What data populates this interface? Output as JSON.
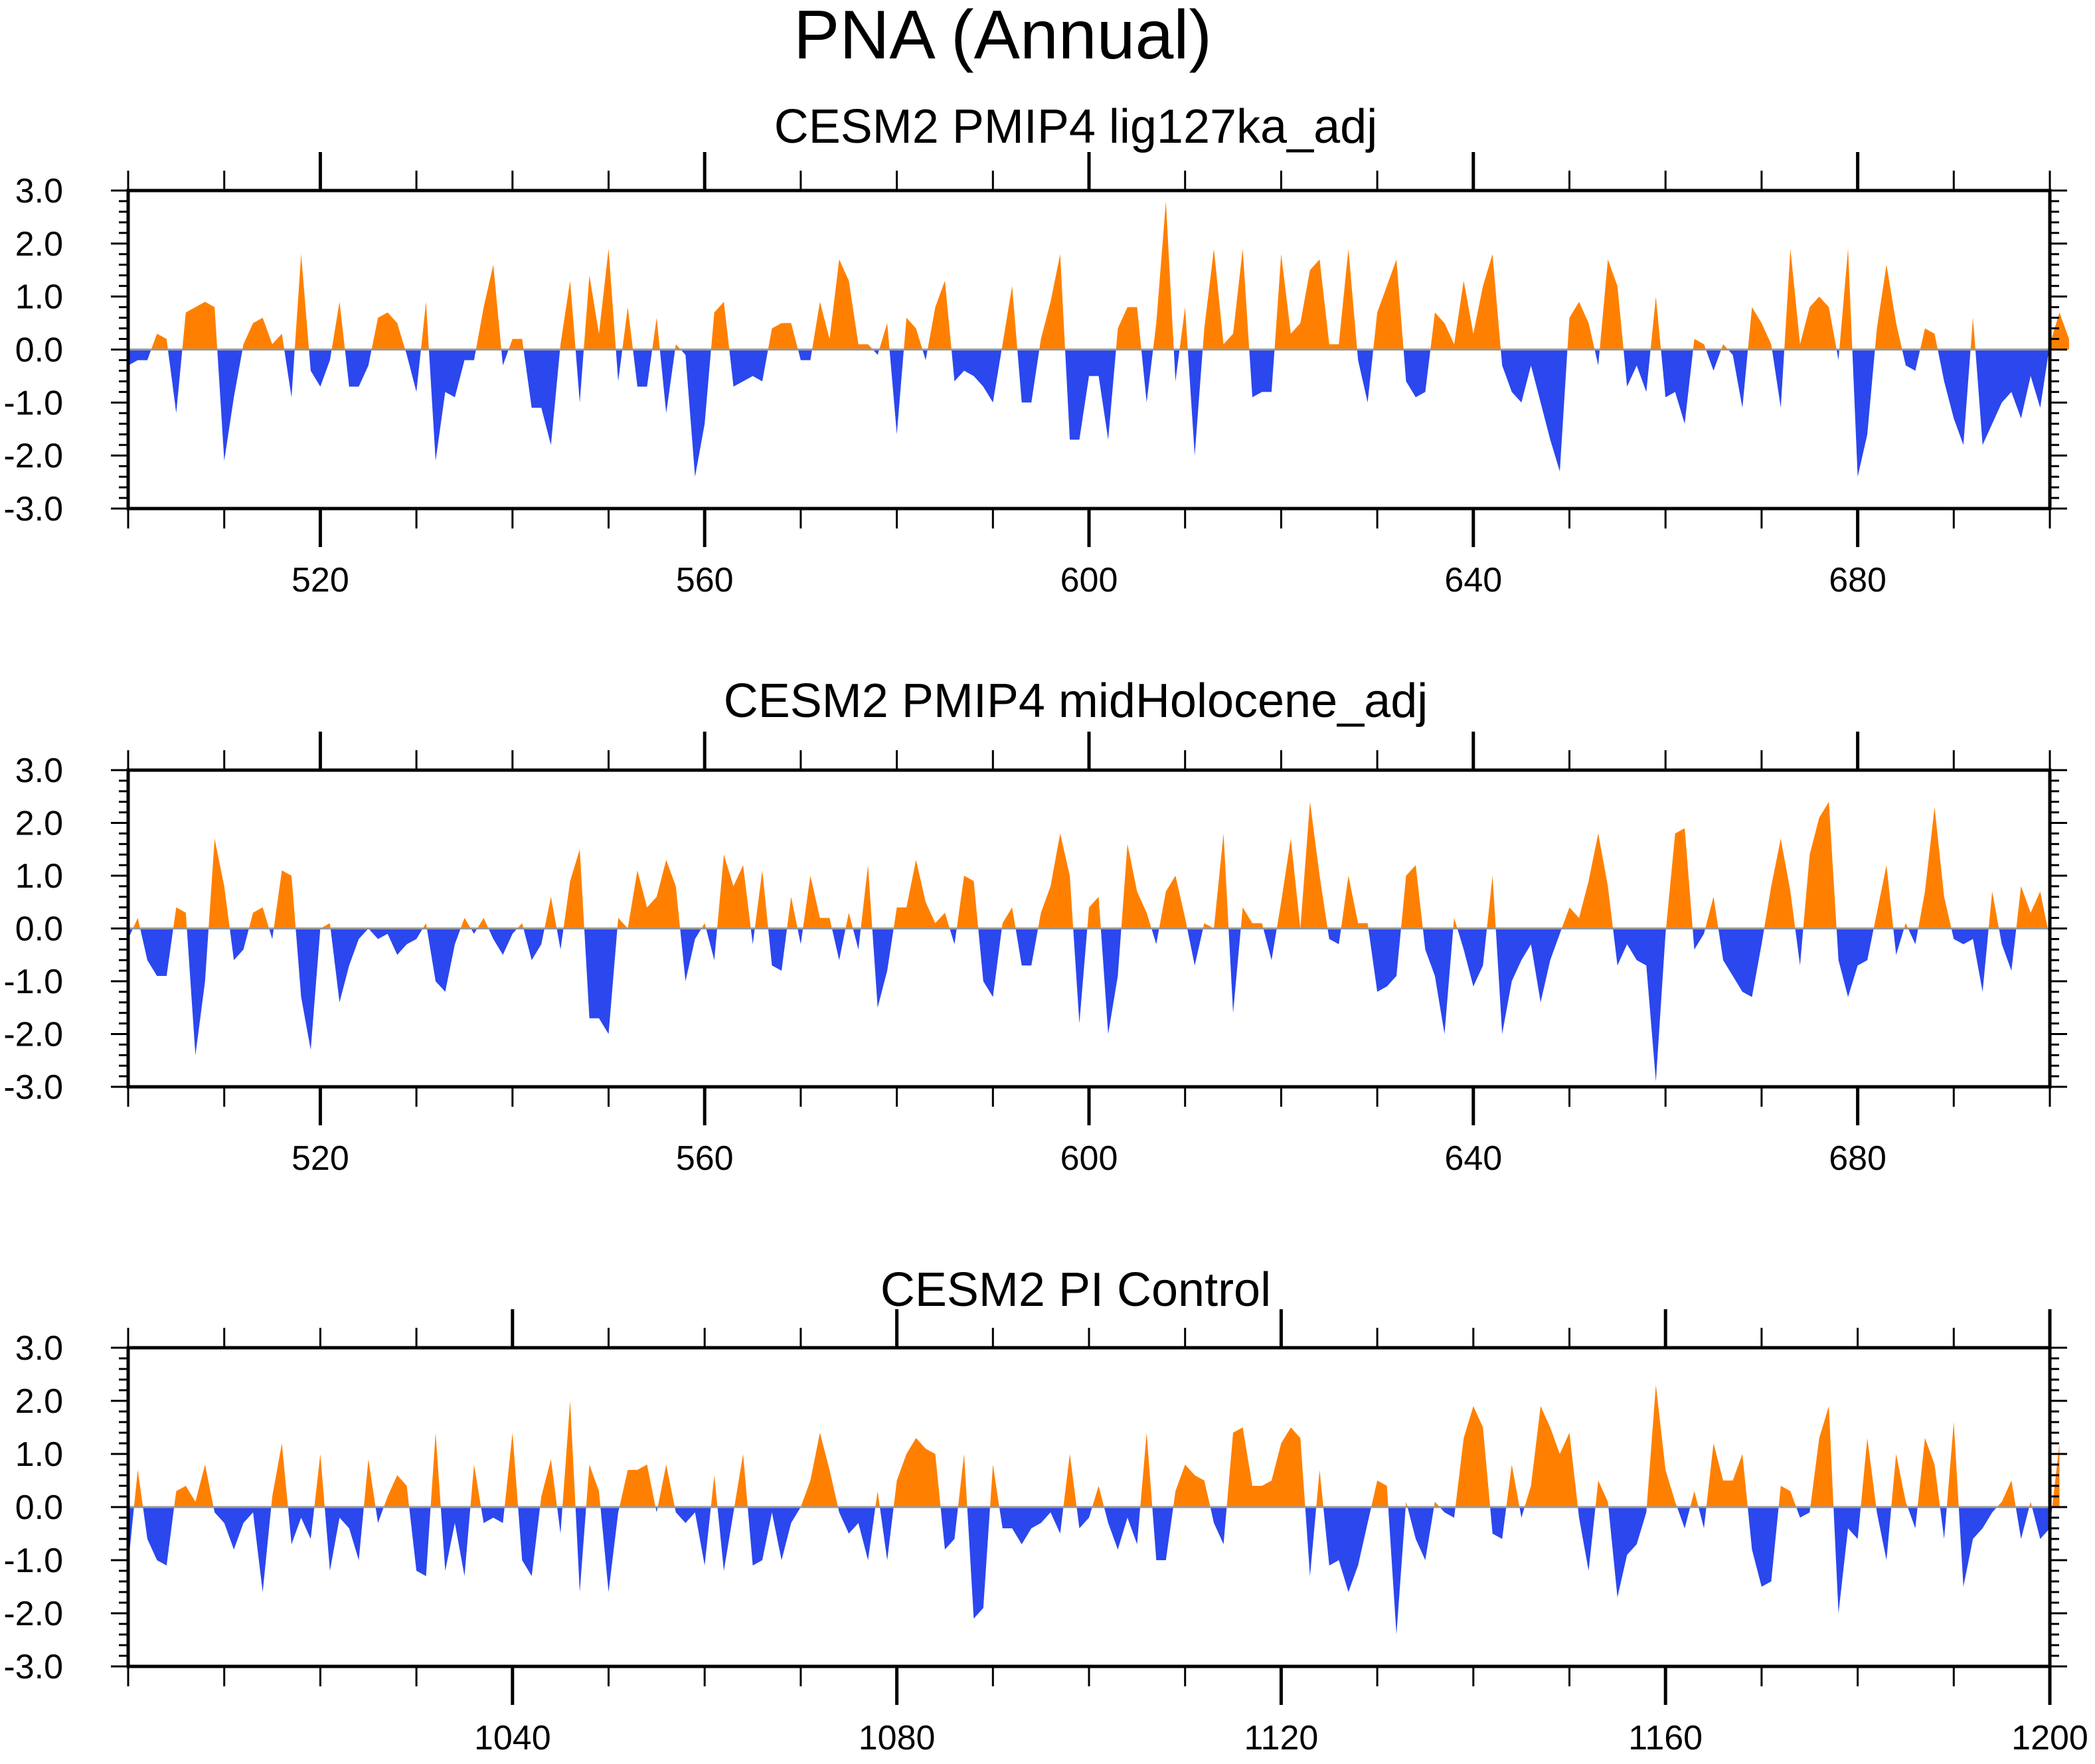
{
  "title": "PNA (Annual)",
  "colors": {
    "positive": "#ff8000",
    "negative": "#2b47ee",
    "zero_line": "#999999",
    "axis": "#000000"
  },
  "chart_data": [
    {
      "type": "area",
      "title": "CESM2 PMIP4 lig127ka_adj",
      "xlim": [
        500,
        700
      ],
      "ylim": [
        -3,
        3
      ],
      "x_ticks": [
        520,
        560,
        600,
        640,
        680
      ],
      "x_tick_labels": [
        "520",
        "560",
        "600",
        "640",
        "680"
      ],
      "y_ticks": [
        3,
        2,
        1,
        0,
        -1,
        -2,
        -3
      ],
      "y_tick_labels": [
        "3.0",
        "2.0",
        "1.0",
        "0.0",
        "-1.0",
        "-2.0",
        "-3.0"
      ],
      "x_start": 500,
      "values": [
        -0.3,
        -0.2,
        -0.2,
        0.3,
        0.2,
        -1.2,
        0.7,
        0.8,
        0.9,
        0.8,
        -2.1,
        -0.9,
        0.1,
        0.5,
        0.6,
        0.1,
        0.3,
        -0.9,
        1.8,
        -0.4,
        -0.7,
        -0.2,
        0.9,
        -0.7,
        -0.7,
        -0.3,
        0.6,
        0.7,
        0.5,
        -0.1,
        -0.8,
        0.9,
        -2.1,
        -0.8,
        -0.9,
        -0.2,
        -0.2,
        0.8,
        1.6,
        -0.3,
        0.2,
        0.2,
        -1.1,
        -1.1,
        -1.8,
        0.1,
        1.3,
        -1.0,
        1.4,
        0.3,
        1.9,
        -0.6,
        0.8,
        -0.7,
        -0.7,
        0.6,
        -1.2,
        0.1,
        -0.1,
        -2.4,
        -1.4,
        0.7,
        0.9,
        -0.7,
        -0.6,
        -0.5,
        -0.6,
        0.4,
        0.5,
        0.5,
        -0.2,
        -0.2,
        0.9,
        0.2,
        1.7,
        1.3,
        0.1,
        0.1,
        -0.1,
        0.5,
        -1.6,
        0.6,
        0.4,
        -0.2,
        0.8,
        1.3,
        -0.6,
        -0.4,
        -0.5,
        -0.7,
        -1.0,
        0.1,
        1.2,
        -1.0,
        -1.0,
        0.2,
        0.9,
        1.8,
        -1.7,
        -1.7,
        -0.5,
        -0.5,
        -1.7,
        0.4,
        0.8,
        0.8,
        -1.0,
        0.5,
        2.8,
        -0.6,
        0.8,
        -2.0,
        0.4,
        1.9,
        0.1,
        0.3,
        1.9,
        -0.9,
        -0.8,
        -0.8,
        1.8,
        0.3,
        0.5,
        1.5,
        1.7,
        0.1,
        0.1,
        1.9,
        -0.2,
        -1.0,
        0.7,
        1.2,
        1.7,
        -0.6,
        -0.9,
        -0.8,
        0.7,
        0.5,
        0.1,
        1.3,
        0.3,
        1.2,
        1.8,
        -0.3,
        -0.8,
        -1.0,
        -0.3,
        -1.0,
        -1.7,
        -2.3,
        0.6,
        0.9,
        0.5,
        -0.3,
        1.7,
        1.2,
        -0.7,
        -0.3,
        -0.8,
        1.0,
        -0.9,
        -0.8,
        -1.4,
        0.2,
        0.1,
        -0.4,
        0.1,
        -0.1,
        -1.1,
        0.8,
        0.5,
        0.1,
        -1.1,
        1.9,
        0.1,
        0.8,
        1.0,
        0.8,
        -0.2,
        1.9,
        -2.4,
        -1.6,
        0.4,
        1.6,
        0.5,
        -0.3,
        -0.4,
        0.4,
        0.3,
        -0.6,
        -1.3,
        -1.8,
        0.6,
        -1.8,
        -1.4,
        -1.0,
        -0.8,
        -1.3,
        -0.5,
        -1.1,
        0.1,
        0.7,
        0.2
      ]
    },
    {
      "type": "area",
      "title": "CESM2 PMIP4 midHolocene_adj",
      "xlim": [
        500,
        700
      ],
      "ylim": [
        -3,
        3
      ],
      "x_ticks": [
        520,
        560,
        600,
        640,
        680
      ],
      "x_tick_labels": [
        "520",
        "560",
        "600",
        "640",
        "680"
      ],
      "y_ticks": [
        3,
        2,
        1,
        0,
        -1,
        -2,
        -3
      ],
      "y_tick_labels": [
        "3.0",
        "2.0",
        "1.0",
        "0.0",
        "-1.0",
        "-2.0",
        "-3.0"
      ],
      "x_start": 500,
      "values": [
        -0.2,
        0.2,
        -0.6,
        -0.9,
        -0.9,
        0.4,
        0.3,
        -2.4,
        -1.0,
        1.7,
        0.8,
        -0.6,
        -0.4,
        0.3,
        0.4,
        -0.2,
        1.1,
        1.0,
        -1.3,
        -2.3,
        0.0,
        0.1,
        -1.4,
        -0.7,
        -0.2,
        0.0,
        -0.2,
        -0.1,
        -0.5,
        -0.3,
        -0.2,
        0.1,
        -1.0,
        -1.2,
        -0.3,
        0.2,
        -0.1,
        0.2,
        -0.2,
        -0.5,
        -0.1,
        0.1,
        -0.6,
        -0.3,
        0.6,
        -0.4,
        0.9,
        1.5,
        -1.7,
        -1.7,
        -2.0,
        0.2,
        0.0,
        1.1,
        0.4,
        0.6,
        1.3,
        0.8,
        -1.0,
        -0.2,
        0.1,
        -0.6,
        1.4,
        0.8,
        1.2,
        -0.3,
        1.1,
        -0.7,
        -0.8,
        0.6,
        -0.3,
        1.0,
        0.2,
        0.2,
        -0.6,
        0.3,
        -0.4,
        1.2,
        -1.5,
        -0.8,
        0.4,
        0.4,
        1.3,
        0.5,
        0.1,
        0.3,
        -0.3,
        1.0,
        0.9,
        -1.0,
        -1.3,
        0.1,
        0.4,
        -0.7,
        -0.7,
        0.3,
        0.8,
        1.8,
        1.0,
        -1.8,
        0.4,
        0.6,
        -2.0,
        -0.9,
        1.6,
        0.7,
        0.3,
        -0.3,
        0.7,
        1.0,
        0.2,
        -0.7,
        0.1,
        0.0,
        1.8,
        -1.6,
        0.4,
        0.1,
        0.1,
        -0.6,
        0.5,
        1.7,
        0.0,
        2.4,
        1.0,
        -0.2,
        -0.3,
        1.0,
        0.1,
        0.1,
        -1.2,
        -1.1,
        -0.9,
        1.0,
        1.2,
        -0.4,
        -0.9,
        -2.0,
        0.2,
        -0.4,
        -1.1,
        -0.7,
        1.0,
        -2.0,
        -1.0,
        -0.6,
        -0.3,
        -1.4,
        -0.6,
        -0.1,
        0.4,
        0.2,
        0.9,
        1.8,
        0.8,
        -0.7,
        -0.3,
        -0.6,
        -0.7,
        -2.9,
        -0.1,
        1.8,
        1.9,
        -0.4,
        -0.1,
        0.6,
        -0.6,
        -0.9,
        -1.2,
        -1.3,
        -0.3,
        0.8,
        1.7,
        0.7,
        -0.7,
        1.4,
        2.1,
        2.4,
        -0.6,
        -1.3,
        -0.7,
        -0.6,
        0.3,
        1.2,
        -0.5,
        0.1,
        -0.3,
        0.7,
        2.3,
        0.6,
        -0.2,
        -0.3,
        -0.2,
        -1.2,
        0.7,
        -0.3,
        -0.8,
        0.8,
        0.3,
        0.7,
        -0.2
      ]
    },
    {
      "type": "area",
      "title": "CESM2 PI Control",
      "xlim": [
        1000,
        1200
      ],
      "ylim": [
        -3,
        3
      ],
      "x_ticks": [
        1040,
        1080,
        1120,
        1160,
        1200
      ],
      "x_tick_labels": [
        "1040",
        "1080",
        "1120",
        "1160",
        "1200"
      ],
      "y_ticks": [
        3,
        2,
        1,
        0,
        -1,
        -2,
        -3
      ],
      "y_tick_labels": [
        "3.0",
        "2.0",
        "1.0",
        "0.0",
        "-1.0",
        "-2.0",
        "-3.0"
      ],
      "x_start": 1000,
      "values": [
        -1.1,
        0.7,
        -0.6,
        -1.0,
        -1.1,
        0.3,
        0.4,
        0.1,
        0.8,
        -0.1,
        -0.3,
        -0.8,
        -0.3,
        -0.1,
        -1.6,
        0.2,
        1.2,
        -0.7,
        -0.2,
        -0.6,
        1.0,
        -1.2,
        -0.2,
        -0.4,
        -1.0,
        0.9,
        -0.3,
        0.2,
        0.6,
        0.4,
        -1.2,
        -1.3,
        1.4,
        -1.2,
        -0.3,
        -1.3,
        0.8,
        -0.3,
        -0.2,
        -0.3,
        1.4,
        -1.0,
        -1.3,
        0.2,
        0.9,
        -0.5,
        2.0,
        -1.6,
        0.8,
        0.3,
        -1.6,
        -0.1,
        0.7,
        0.7,
        0.8,
        -0.1,
        0.8,
        -0.1,
        -0.3,
        -0.1,
        -1.1,
        0.6,
        -1.2,
        -0.1,
        1.0,
        -1.1,
        -1.0,
        -0.1,
        -1.0,
        -0.3,
        0.0,
        0.5,
        1.4,
        0.7,
        -0.1,
        -0.5,
        -0.3,
        -1.0,
        0.3,
        -1.0,
        0.5,
        1.0,
        1.3,
        1.1,
        1.0,
        -0.8,
        -0.6,
        1.0,
        -2.1,
        -1.9,
        0.8,
        -0.4,
        -0.4,
        -0.7,
        -0.4,
        -0.3,
        -0.1,
        -0.5,
        1.0,
        -0.4,
        -0.2,
        0.4,
        -0.3,
        -0.8,
        -0.2,
        -0.7,
        1.4,
        -1.0,
        -1.0,
        0.3,
        0.8,
        0.6,
        0.5,
        -0.3,
        -0.7,
        1.4,
        1.5,
        0.4,
        0.4,
        0.5,
        1.2,
        1.5,
        1.3,
        -1.3,
        0.7,
        -1.1,
        -1.0,
        -1.6,
        -1.1,
        -0.3,
        0.5,
        0.4,
        -2.4,
        0.1,
        -0.6,
        -1.0,
        0.1,
        -0.1,
        -0.2,
        1.3,
        1.9,
        1.5,
        -0.5,
        -0.6,
        0.8,
        -0.2,
        0.4,
        1.9,
        1.5,
        1.0,
        1.4,
        -0.2,
        -1.2,
        0.5,
        0.1,
        -1.7,
        -0.9,
        -0.7,
        -0.1,
        2.3,
        0.7,
        0.1,
        -0.4,
        0.3,
        -0.4,
        1.2,
        0.5,
        0.5,
        1.0,
        -0.8,
        -1.5,
        -1.4,
        0.4,
        0.3,
        -0.2,
        -0.1,
        1.3,
        1.9,
        -2.0,
        -0.4,
        -0.6,
        1.3,
        -0.1,
        -1.0,
        1.0,
        0.1,
        -0.4,
        1.3,
        0.8,
        -0.6,
        1.6,
        -1.5,
        -0.6,
        -0.4,
        -0.1,
        0.1,
        0.5,
        -0.6,
        0.1,
        -0.6,
        -0.4,
        1.2
      ]
    }
  ]
}
